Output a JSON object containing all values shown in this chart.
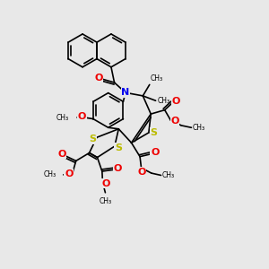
{
  "bg_color": "#e8e8e8",
  "bond_color": "#000000",
  "bond_width": 1.2,
  "N_color": "#0000ee",
  "O_color": "#ee0000",
  "S_color": "#bbbb00",
  "font_size": 7,
  "fig_width": 3.0,
  "fig_height": 3.0,
  "dpi": 100,
  "xlim": [
    0,
    10
  ],
  "ylim": [
    0,
    10
  ]
}
